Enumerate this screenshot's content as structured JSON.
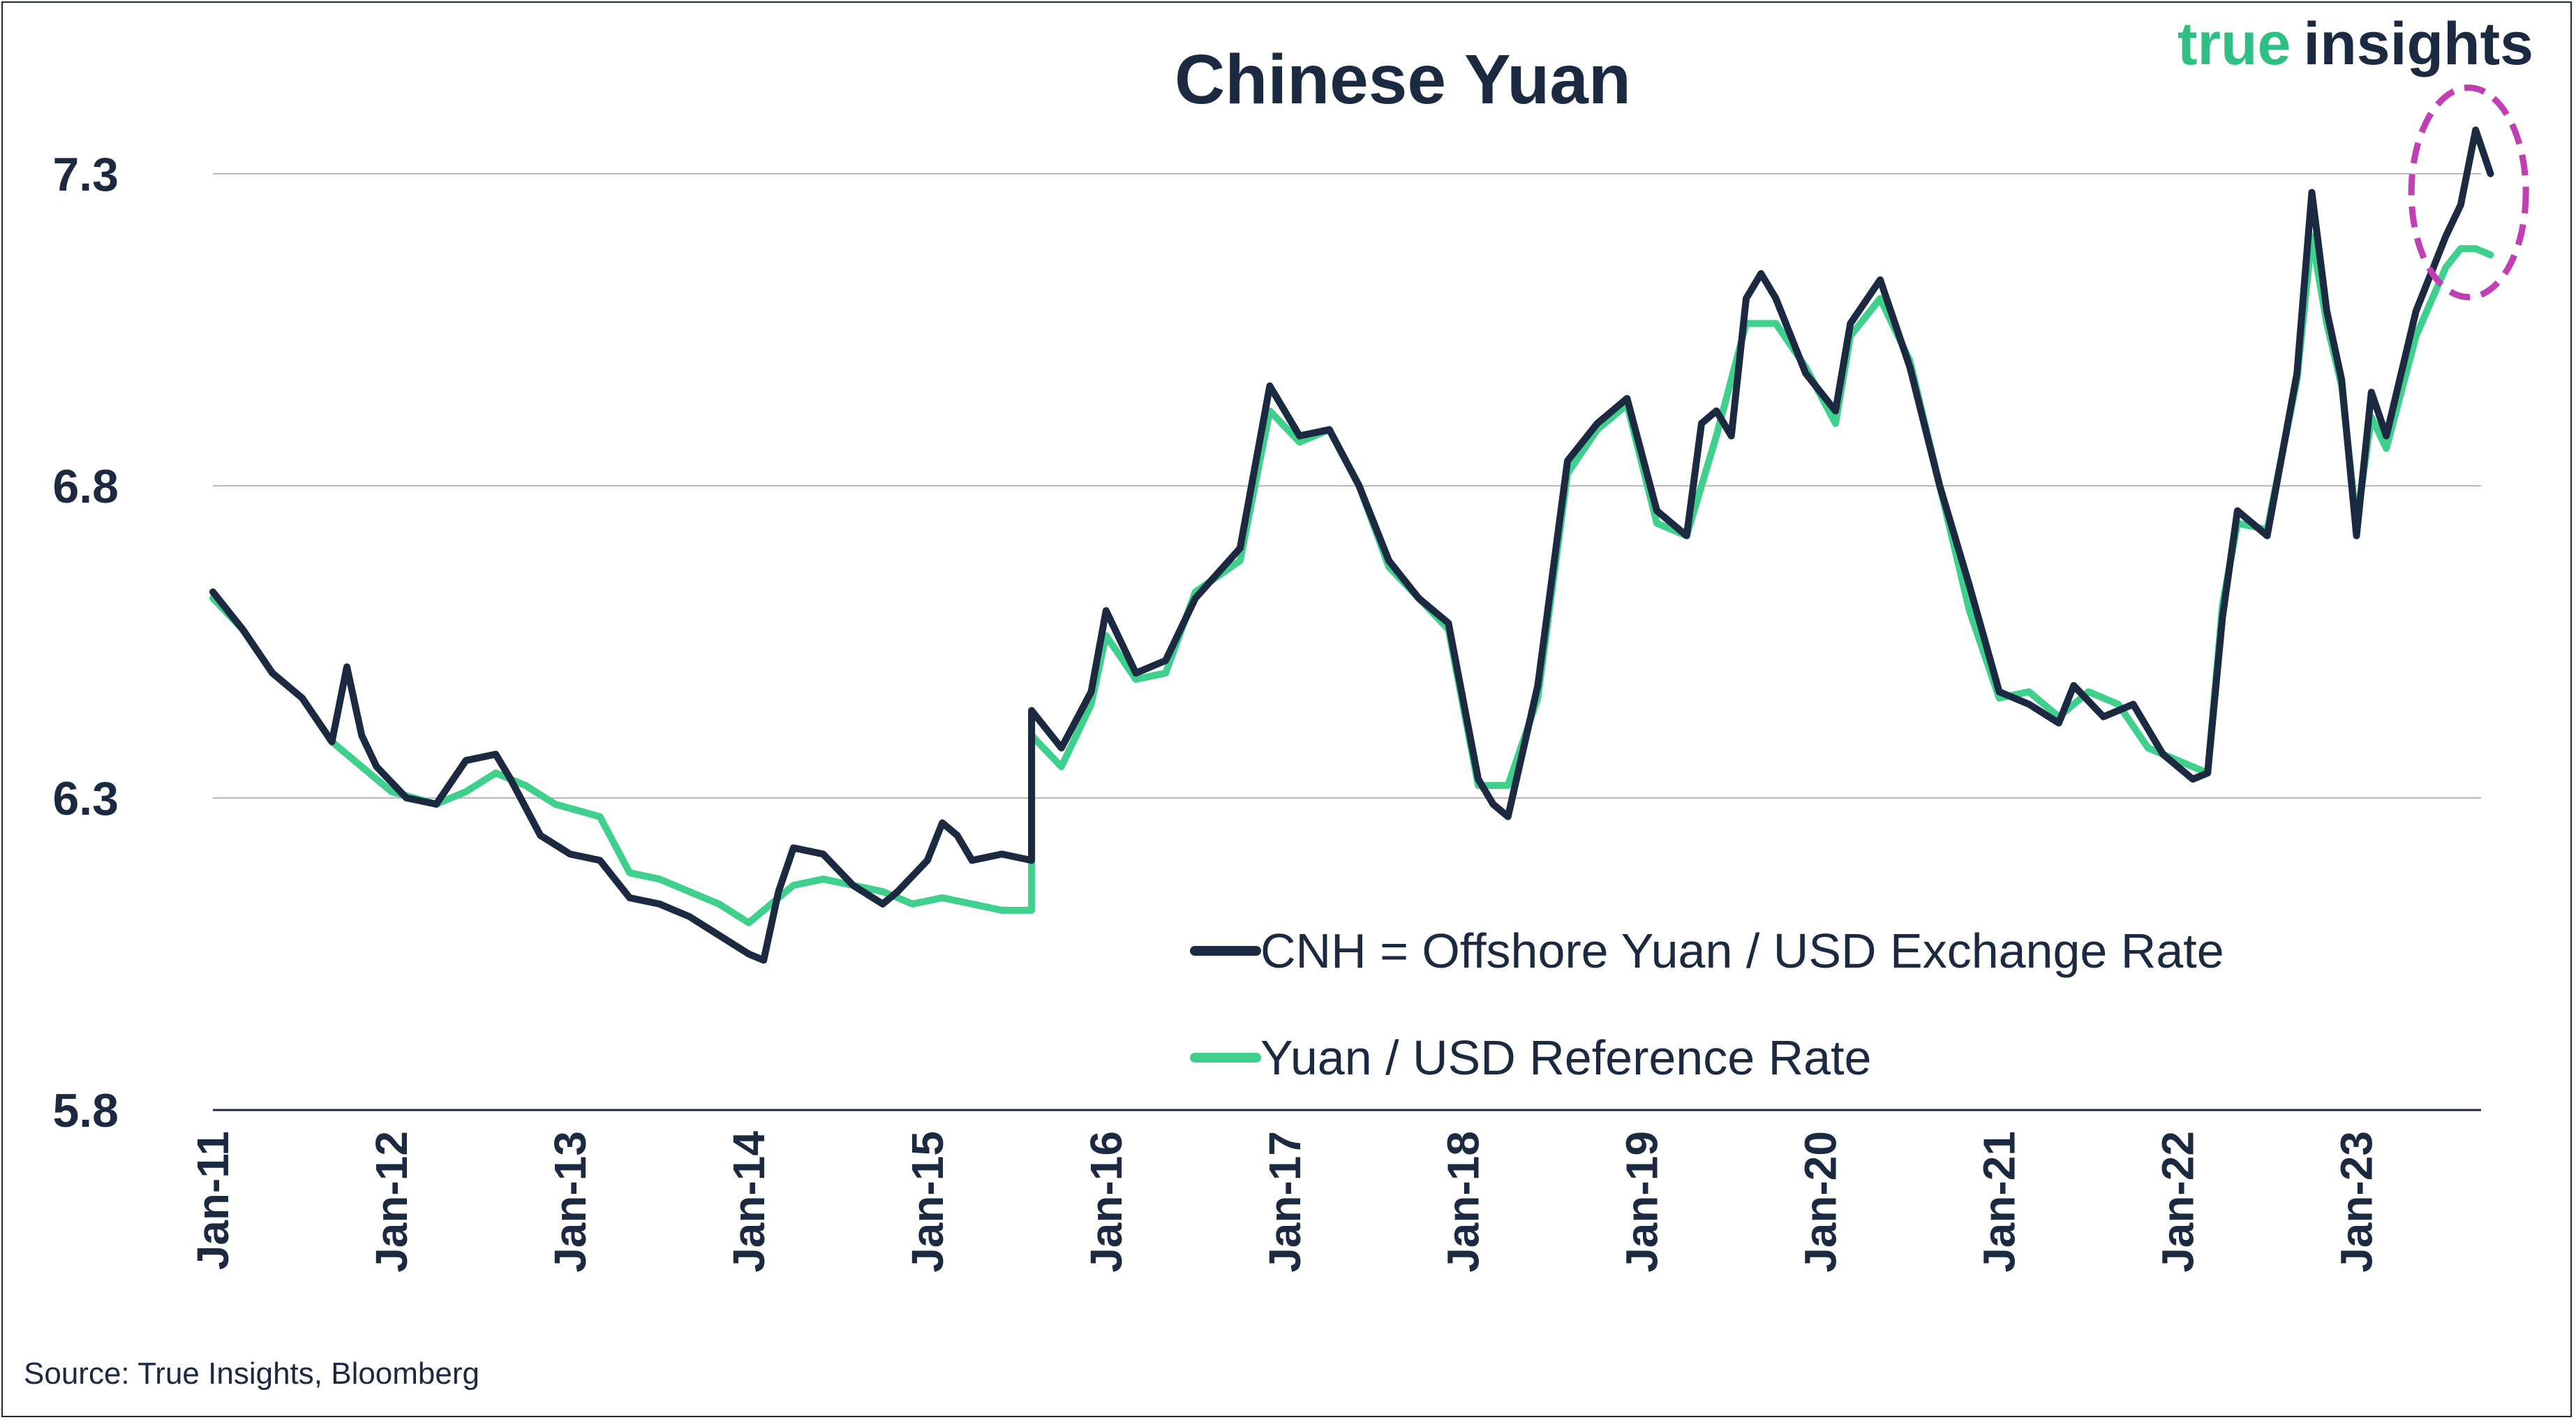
{
  "brand": {
    "word1": "true",
    "word2": "insights",
    "color1": "#2fbf84",
    "color2": "#1b2a41"
  },
  "source": "Source: True Insights, Bloomberg",
  "colors": {
    "cnh": "#1b2a41",
    "ref": "#3fd08e",
    "highlight": "#c13fb4",
    "grid": "#b8b8b8",
    "text": "#1b2a41"
  },
  "chart_data": {
    "type": "line",
    "title": "Chinese Yuan",
    "xlabel": "",
    "ylabel": "",
    "ylim": [
      5.8,
      7.5
    ],
    "xlim": [
      "2011-01",
      "2023-12"
    ],
    "yticks": [
      5.8,
      6.3,
      6.8,
      7.3
    ],
    "ytick_labels": [
      "5.8",
      "6.3",
      "6.8",
      "7.3"
    ],
    "xtick_labels": [
      "Jan-11",
      "Jan-12",
      "Jan-13",
      "Jan-14",
      "Jan-15",
      "Jan-16",
      "Jan-17",
      "Jan-18",
      "Jan-19",
      "Jan-20",
      "Jan-21",
      "Jan-22",
      "Jan-23"
    ],
    "grid": "horizontal",
    "legend_position": "bottom-right",
    "series": [
      {
        "name": "CNH = Offshore Yuan / USD Exchange Rate",
        "color": "#1b2a41",
        "points": [
          [
            "2011-01",
            6.63
          ],
          [
            "2011-03",
            6.57
          ],
          [
            "2011-05",
            6.5
          ],
          [
            "2011-07",
            6.46
          ],
          [
            "2011-09",
            6.39
          ],
          [
            "2011-10",
            6.51
          ],
          [
            "2011-11",
            6.4
          ],
          [
            "2011-12",
            6.35
          ],
          [
            "2012-02",
            6.3
          ],
          [
            "2012-04",
            6.29
          ],
          [
            "2012-06",
            6.36
          ],
          [
            "2012-08",
            6.37
          ],
          [
            "2012-09",
            6.33
          ],
          [
            "2012-11",
            6.24
          ],
          [
            "2013-01",
            6.21
          ],
          [
            "2013-03",
            6.2
          ],
          [
            "2013-05",
            6.14
          ],
          [
            "2013-07",
            6.13
          ],
          [
            "2013-09",
            6.11
          ],
          [
            "2013-11",
            6.08
          ],
          [
            "2014-01",
            6.05
          ],
          [
            "2014-02",
            6.04
          ],
          [
            "2014-03",
            6.15
          ],
          [
            "2014-04",
            6.22
          ],
          [
            "2014-06",
            6.21
          ],
          [
            "2014-08",
            6.16
          ],
          [
            "2014-10",
            6.13
          ],
          [
            "2014-11",
            6.15
          ],
          [
            "2015-01",
            6.2
          ],
          [
            "2015-02",
            6.26
          ],
          [
            "2015-03",
            6.24
          ],
          [
            "2015-04",
            6.2
          ],
          [
            "2015-06",
            6.21
          ],
          [
            "2015-08",
            6.2
          ],
          [
            "2015-08",
            6.44
          ],
          [
            "2015-10",
            6.38
          ],
          [
            "2015-12",
            6.47
          ],
          [
            "2016-01",
            6.6
          ],
          [
            "2016-03",
            6.5
          ],
          [
            "2016-05",
            6.52
          ],
          [
            "2016-07",
            6.62
          ],
          [
            "2016-10",
            6.7
          ],
          [
            "2016-12",
            6.96
          ],
          [
            "2017-02",
            6.88
          ],
          [
            "2017-04",
            6.89
          ],
          [
            "2017-06",
            6.8
          ],
          [
            "2017-08",
            6.68
          ],
          [
            "2017-10",
            6.62
          ],
          [
            "2017-12",
            6.58
          ],
          [
            "2018-02",
            6.33
          ],
          [
            "2018-03",
            6.29
          ],
          [
            "2018-04",
            6.27
          ],
          [
            "2018-06",
            6.48
          ],
          [
            "2018-08",
            6.84
          ],
          [
            "2018-10",
            6.9
          ],
          [
            "2018-12",
            6.94
          ],
          [
            "2019-02",
            6.76
          ],
          [
            "2019-04",
            6.72
          ],
          [
            "2019-05",
            6.9
          ],
          [
            "2019-06",
            6.92
          ],
          [
            "2019-07",
            6.88
          ],
          [
            "2019-08",
            7.1
          ],
          [
            "2019-09",
            7.14
          ],
          [
            "2019-10",
            7.1
          ],
          [
            "2019-12",
            6.98
          ],
          [
            "2020-02",
            6.92
          ],
          [
            "2020-03",
            7.06
          ],
          [
            "2020-05",
            7.13
          ],
          [
            "2020-07",
            6.99
          ],
          [
            "2020-09",
            6.8
          ],
          [
            "2020-11",
            6.64
          ],
          [
            "2021-01",
            6.47
          ],
          [
            "2021-03",
            6.45
          ],
          [
            "2021-05",
            6.42
          ],
          [
            "2021-06",
            6.48
          ],
          [
            "2021-08",
            6.43
          ],
          [
            "2021-10",
            6.45
          ],
          [
            "2021-12",
            6.37
          ],
          [
            "2022-02",
            6.33
          ],
          [
            "2022-03",
            6.34
          ],
          [
            "2022-04",
            6.59
          ],
          [
            "2022-05",
            6.76
          ],
          [
            "2022-07",
            6.72
          ],
          [
            "2022-09",
            6.98
          ],
          [
            "2022-10",
            7.27
          ],
          [
            "2022-11",
            7.08
          ],
          [
            "2022-12",
            6.97
          ],
          [
            "2023-01",
            6.72
          ],
          [
            "2023-02",
            6.95
          ],
          [
            "2023-03",
            6.88
          ],
          [
            "2023-05",
            7.08
          ],
          [
            "2023-07",
            7.2
          ],
          [
            "2023-08",
            7.25
          ],
          [
            "2023-09",
            7.37
          ],
          [
            "2023-10",
            7.3
          ]
        ]
      },
      {
        "name": "Yuan / USD Reference Rate",
        "color": "#3fd08e",
        "points": [
          [
            "2011-01",
            6.62
          ],
          [
            "2011-03",
            6.57
          ],
          [
            "2011-05",
            6.5
          ],
          [
            "2011-07",
            6.46
          ],
          [
            "2011-09",
            6.39
          ],
          [
            "2011-11",
            6.35
          ],
          [
            "2012-01",
            6.31
          ],
          [
            "2012-04",
            6.29
          ],
          [
            "2012-06",
            6.31
          ],
          [
            "2012-08",
            6.34
          ],
          [
            "2012-10",
            6.32
          ],
          [
            "2012-12",
            6.29
          ],
          [
            "2013-03",
            6.27
          ],
          [
            "2013-05",
            6.18
          ],
          [
            "2013-07",
            6.17
          ],
          [
            "2013-09",
            6.15
          ],
          [
            "2013-11",
            6.13
          ],
          [
            "2014-01",
            6.1
          ],
          [
            "2014-02",
            6.12
          ],
          [
            "2014-04",
            6.16
          ],
          [
            "2014-06",
            6.17
          ],
          [
            "2014-08",
            6.16
          ],
          [
            "2014-10",
            6.15
          ],
          [
            "2014-12",
            6.13
          ],
          [
            "2015-02",
            6.14
          ],
          [
            "2015-04",
            6.13
          ],
          [
            "2015-06",
            6.12
          ],
          [
            "2015-08",
            6.12
          ],
          [
            "2015-08",
            6.4
          ],
          [
            "2015-10",
            6.35
          ],
          [
            "2015-12",
            6.45
          ],
          [
            "2016-01",
            6.56
          ],
          [
            "2016-03",
            6.49
          ],
          [
            "2016-05",
            6.5
          ],
          [
            "2016-07",
            6.63
          ],
          [
            "2016-10",
            6.68
          ],
          [
            "2016-12",
            6.92
          ],
          [
            "2017-02",
            6.87
          ],
          [
            "2017-04",
            6.89
          ],
          [
            "2017-06",
            6.8
          ],
          [
            "2017-08",
            6.67
          ],
          [
            "2017-10",
            6.62
          ],
          [
            "2017-12",
            6.57
          ],
          [
            "2018-02",
            6.32
          ],
          [
            "2018-04",
            6.32
          ],
          [
            "2018-06",
            6.46
          ],
          [
            "2018-08",
            6.82
          ],
          [
            "2018-10",
            6.89
          ],
          [
            "2018-12",
            6.93
          ],
          [
            "2019-02",
            6.74
          ],
          [
            "2019-04",
            6.72
          ],
          [
            "2019-06",
            6.88
          ],
          [
            "2019-08",
            7.06
          ],
          [
            "2019-10",
            7.06
          ],
          [
            "2019-12",
            6.99
          ],
          [
            "2020-02",
            6.9
          ],
          [
            "2020-03",
            7.04
          ],
          [
            "2020-05",
            7.1
          ],
          [
            "2020-07",
            7.0
          ],
          [
            "2020-09",
            6.8
          ],
          [
            "2020-11",
            6.6
          ],
          [
            "2021-01",
            6.46
          ],
          [
            "2021-03",
            6.47
          ],
          [
            "2021-05",
            6.43
          ],
          [
            "2021-07",
            6.47
          ],
          [
            "2021-09",
            6.45
          ],
          [
            "2021-11",
            6.38
          ],
          [
            "2022-01",
            6.36
          ],
          [
            "2022-03",
            6.34
          ],
          [
            "2022-04",
            6.61
          ],
          [
            "2022-05",
            6.74
          ],
          [
            "2022-07",
            6.73
          ],
          [
            "2022-09",
            6.97
          ],
          [
            "2022-10",
            7.2
          ],
          [
            "2022-11",
            7.06
          ],
          [
            "2022-12",
            6.96
          ],
          [
            "2023-01",
            6.74
          ],
          [
            "2023-02",
            6.91
          ],
          [
            "2023-03",
            6.86
          ],
          [
            "2023-05",
            7.04
          ],
          [
            "2023-07",
            7.15
          ],
          [
            "2023-08",
            7.18
          ],
          [
            "2023-09",
            7.18
          ],
          [
            "2023-10",
            7.17
          ]
        ]
      }
    ],
    "annotations": [
      {
        "type": "dashed-ellipse",
        "around": "Aug-2023 to Oct-2023 peak"
      }
    ]
  }
}
